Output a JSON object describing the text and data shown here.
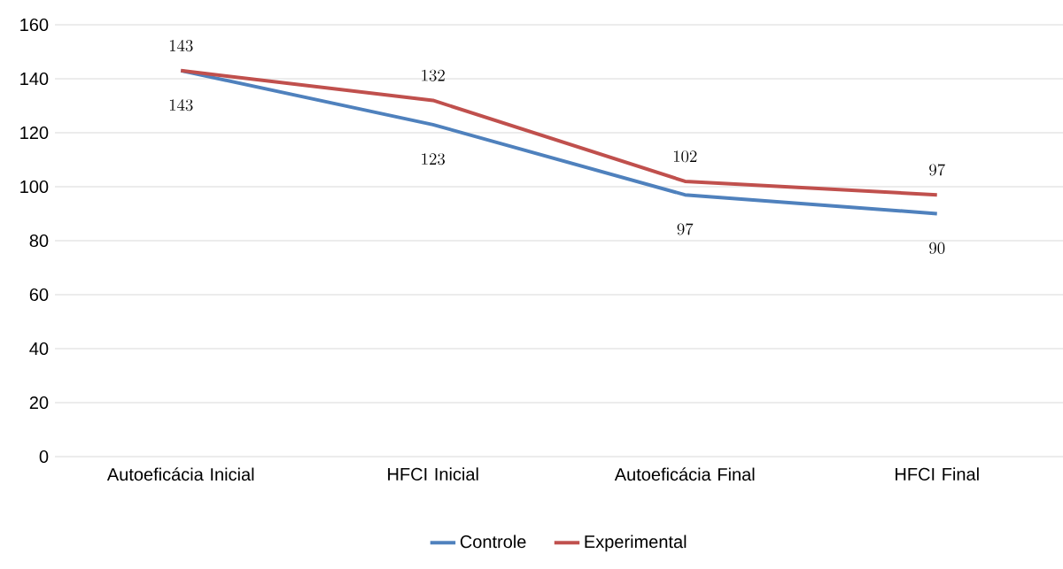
{
  "chart_data": {
    "type": "line",
    "categories": [
      "Autoeficácia Inicial",
      "HFCI Inicial",
      "Autoeficácia Final",
      "HFCI Final"
    ],
    "series": [
      {
        "name": "Controle",
        "color": "#4f81bd",
        "values": [
          143,
          123,
          97,
          90
        ]
      },
      {
        "name": "Experimental",
        "color": "#c0504d",
        "values": [
          143,
          132,
          102,
          97
        ]
      }
    ],
    "ylim": [
      0,
      160
    ],
    "yticks": [
      0,
      20,
      40,
      60,
      80,
      100,
      120,
      140,
      160
    ],
    "grid": "y",
    "legend": "bottom",
    "data_labels": true,
    "marker": "none"
  }
}
